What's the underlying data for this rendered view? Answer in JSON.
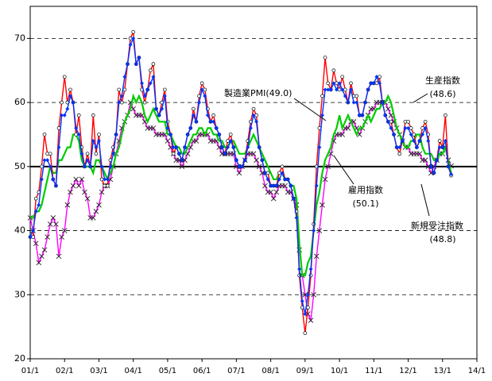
{
  "chart_data": {
    "type": "line",
    "xlim": [
      0,
      156
    ],
    "xticks": [
      {
        "value": 0,
        "label": "01/1"
      },
      {
        "value": 12,
        "label": "02/1"
      },
      {
        "value": 24,
        "label": "03/1"
      },
      {
        "value": 36,
        "label": "04/1"
      },
      {
        "value": 48,
        "label": "05/1"
      },
      {
        "value": 60,
        "label": "06/1"
      },
      {
        "value": 72,
        "label": "07/1"
      },
      {
        "value": 84,
        "label": "08/1"
      },
      {
        "value": 96,
        "label": "09/1"
      },
      {
        "value": 108,
        "label": "10/1"
      },
      {
        "value": 120,
        "label": "11/1"
      },
      {
        "value": 132,
        "label": "12/1"
      },
      {
        "value": 144,
        "label": "13/1"
      },
      {
        "value": 156,
        "label": "14/1"
      }
    ],
    "ylim": [
      20,
      75
    ],
    "yticks": [
      20,
      30,
      40,
      50,
      60,
      70
    ],
    "grid": true,
    "series": [
      {
        "name": "雇用指数",
        "label": "(50.1)",
        "color": "#ff00ff",
        "marker": "x",
        "values": [
          42,
          40,
          38,
          35,
          36,
          37,
          39,
          41,
          42,
          41,
          36,
          39,
          40,
          44,
          46,
          47,
          48,
          47,
          48,
          46,
          45,
          42,
          42,
          43,
          44,
          46,
          47,
          47,
          48,
          50,
          52,
          54,
          56,
          57,
          58,
          60,
          59,
          58,
          58,
          58,
          57,
          56,
          56,
          56,
          55,
          55,
          55,
          55,
          54,
          53,
          52,
          51,
          51,
          50,
          51,
          52,
          53,
          54,
          54,
          55,
          55,
          55,
          55,
          54,
          54,
          54,
          53,
          52,
          52,
          52,
          52,
          52,
          50,
          49,
          50,
          51,
          52,
          52,
          52,
          51,
          50,
          49,
          47,
          46,
          46,
          45,
          46,
          47,
          47,
          47,
          46,
          46,
          45,
          44,
          37,
          33,
          30,
          27,
          26,
          30,
          36,
          40,
          44,
          48,
          50,
          52,
          54,
          55,
          55,
          55,
          56,
          56,
          57,
          57,
          56,
          55,
          56,
          57,
          58,
          59,
          59,
          60,
          60,
          60,
          60,
          59,
          58,
          57,
          56,
          55,
          54,
          53,
          53,
          52,
          52,
          52,
          52,
          51,
          51,
          50,
          49,
          50,
          51,
          52,
          52,
          53,
          51,
          50.1
        ]
      },
      {
        "name": "製造業PMI",
        "label": "(49.0)",
        "color": "#00cc00",
        "marker": "none",
        "values": [
          42,
          42,
          43,
          43,
          44,
          46,
          48,
          50,
          49,
          49,
          51,
          51,
          52,
          53,
          53,
          55,
          55,
          54,
          51,
          50,
          50,
          50,
          49,
          51,
          51,
          50,
          49,
          48,
          49,
          50,
          52,
          53,
          55,
          57,
          58,
          59,
          61,
          60,
          61,
          60,
          58,
          57,
          58,
          59,
          58,
          57,
          57,
          57,
          55,
          55,
          54,
          53,
          53,
          52,
          52,
          53,
          54,
          55,
          55,
          56,
          56,
          55,
          56,
          56,
          55,
          55,
          54,
          54,
          53,
          53,
          54,
          54,
          53,
          52,
          52,
          52,
          53,
          54,
          55,
          54,
          53,
          52,
          51,
          50,
          49,
          48,
          48,
          49,
          49,
          48,
          48,
          47,
          47,
          45,
          38,
          33,
          33,
          35,
          36,
          40,
          44,
          46,
          49,
          51,
          52,
          53,
          55,
          56,
          58,
          56,
          57,
          58,
          57,
          56,
          55,
          56,
          56,
          57,
          58,
          57,
          58,
          59,
          59,
          60,
          60,
          61,
          60,
          58,
          56,
          55,
          54,
          53,
          53,
          54,
          54,
          55,
          55,
          53,
          52,
          52,
          52,
          51,
          51,
          52,
          52,
          53,
          51,
          49.0
        ]
      },
      {
        "name": "生産指数",
        "label": "(48.6)",
        "color": "#ff0000",
        "marker": "circle",
        "values": [
          39,
          39,
          45,
          46,
          50,
          55,
          52,
          52,
          48,
          47,
          56,
          60,
          64,
          60,
          62,
          60,
          55,
          58,
          53,
          50,
          52,
          50,
          58,
          52,
          55,
          48,
          47,
          47,
          51,
          53,
          55,
          62,
          60,
          62,
          66,
          70,
          71,
          66,
          67,
          62,
          60,
          62,
          65,
          66,
          59,
          58,
          60,
          62,
          57,
          55,
          52,
          53,
          52,
          51,
          53,
          55,
          56,
          59,
          57,
          61,
          63,
          62,
          59,
          57,
          58,
          56,
          55,
          53,
          52,
          54,
          55,
          53,
          51,
          50,
          50,
          51,
          54,
          57,
          59,
          58,
          53,
          51,
          49,
          49,
          47,
          47,
          47,
          49,
          50,
          48,
          48,
          47,
          45,
          43,
          33,
          28,
          24,
          28,
          33,
          41,
          50,
          56,
          61,
          67,
          63,
          62,
          65,
          63,
          62,
          64,
          62,
          60,
          63,
          61,
          61,
          58,
          58,
          60,
          62,
          63,
          63,
          63,
          64,
          60,
          58,
          57,
          57,
          55,
          53,
          52,
          54,
          57,
          57,
          56,
          55,
          53,
          54,
          56,
          57,
          55,
          50,
          49,
          51,
          54,
          53,
          58,
          50,
          48.6
        ]
      },
      {
        "name": "新規受注指数",
        "label": "(48.8)",
        "color": "#0033ff",
        "marker": "diamond",
        "values": [
          39,
          40,
          43,
          44,
          48,
          51,
          51,
          50,
          48,
          47,
          53,
          58,
          58,
          59,
          61,
          60,
          56,
          55,
          52,
          50,
          51,
          50,
          54,
          53,
          54,
          50,
          48,
          48,
          50,
          52,
          55,
          60,
          61,
          64,
          66,
          69,
          70,
          66,
          67,
          63,
          61,
          62,
          63,
          64,
          59,
          58,
          59,
          61,
          56,
          55,
          53,
          53,
          52,
          51,
          53,
          55,
          56,
          58,
          57,
          60,
          62,
          61,
          58,
          57,
          57,
          56,
          55,
          53,
          52,
          53,
          54,
          53,
          51,
          50,
          50,
          51,
          53,
          56,
          58,
          57,
          53,
          51,
          49,
          48,
          47,
          47,
          47,
          48,
          49,
          48,
          48,
          47,
          45,
          42,
          34,
          29,
          27,
          30,
          34,
          40,
          47,
          53,
          58,
          62,
          62,
          62,
          63,
          62,
          63,
          62,
          61,
          60,
          62,
          60,
          60,
          58,
          58,
          60,
          62,
          63,
          63,
          64,
          63,
          60,
          58,
          57,
          56,
          55,
          53,
          53,
          54,
          56,
          56,
          55,
          54,
          53,
          54,
          55,
          56,
          54,
          50,
          49,
          51,
          53,
          53,
          54,
          50,
          48.8
        ]
      }
    ]
  }
}
